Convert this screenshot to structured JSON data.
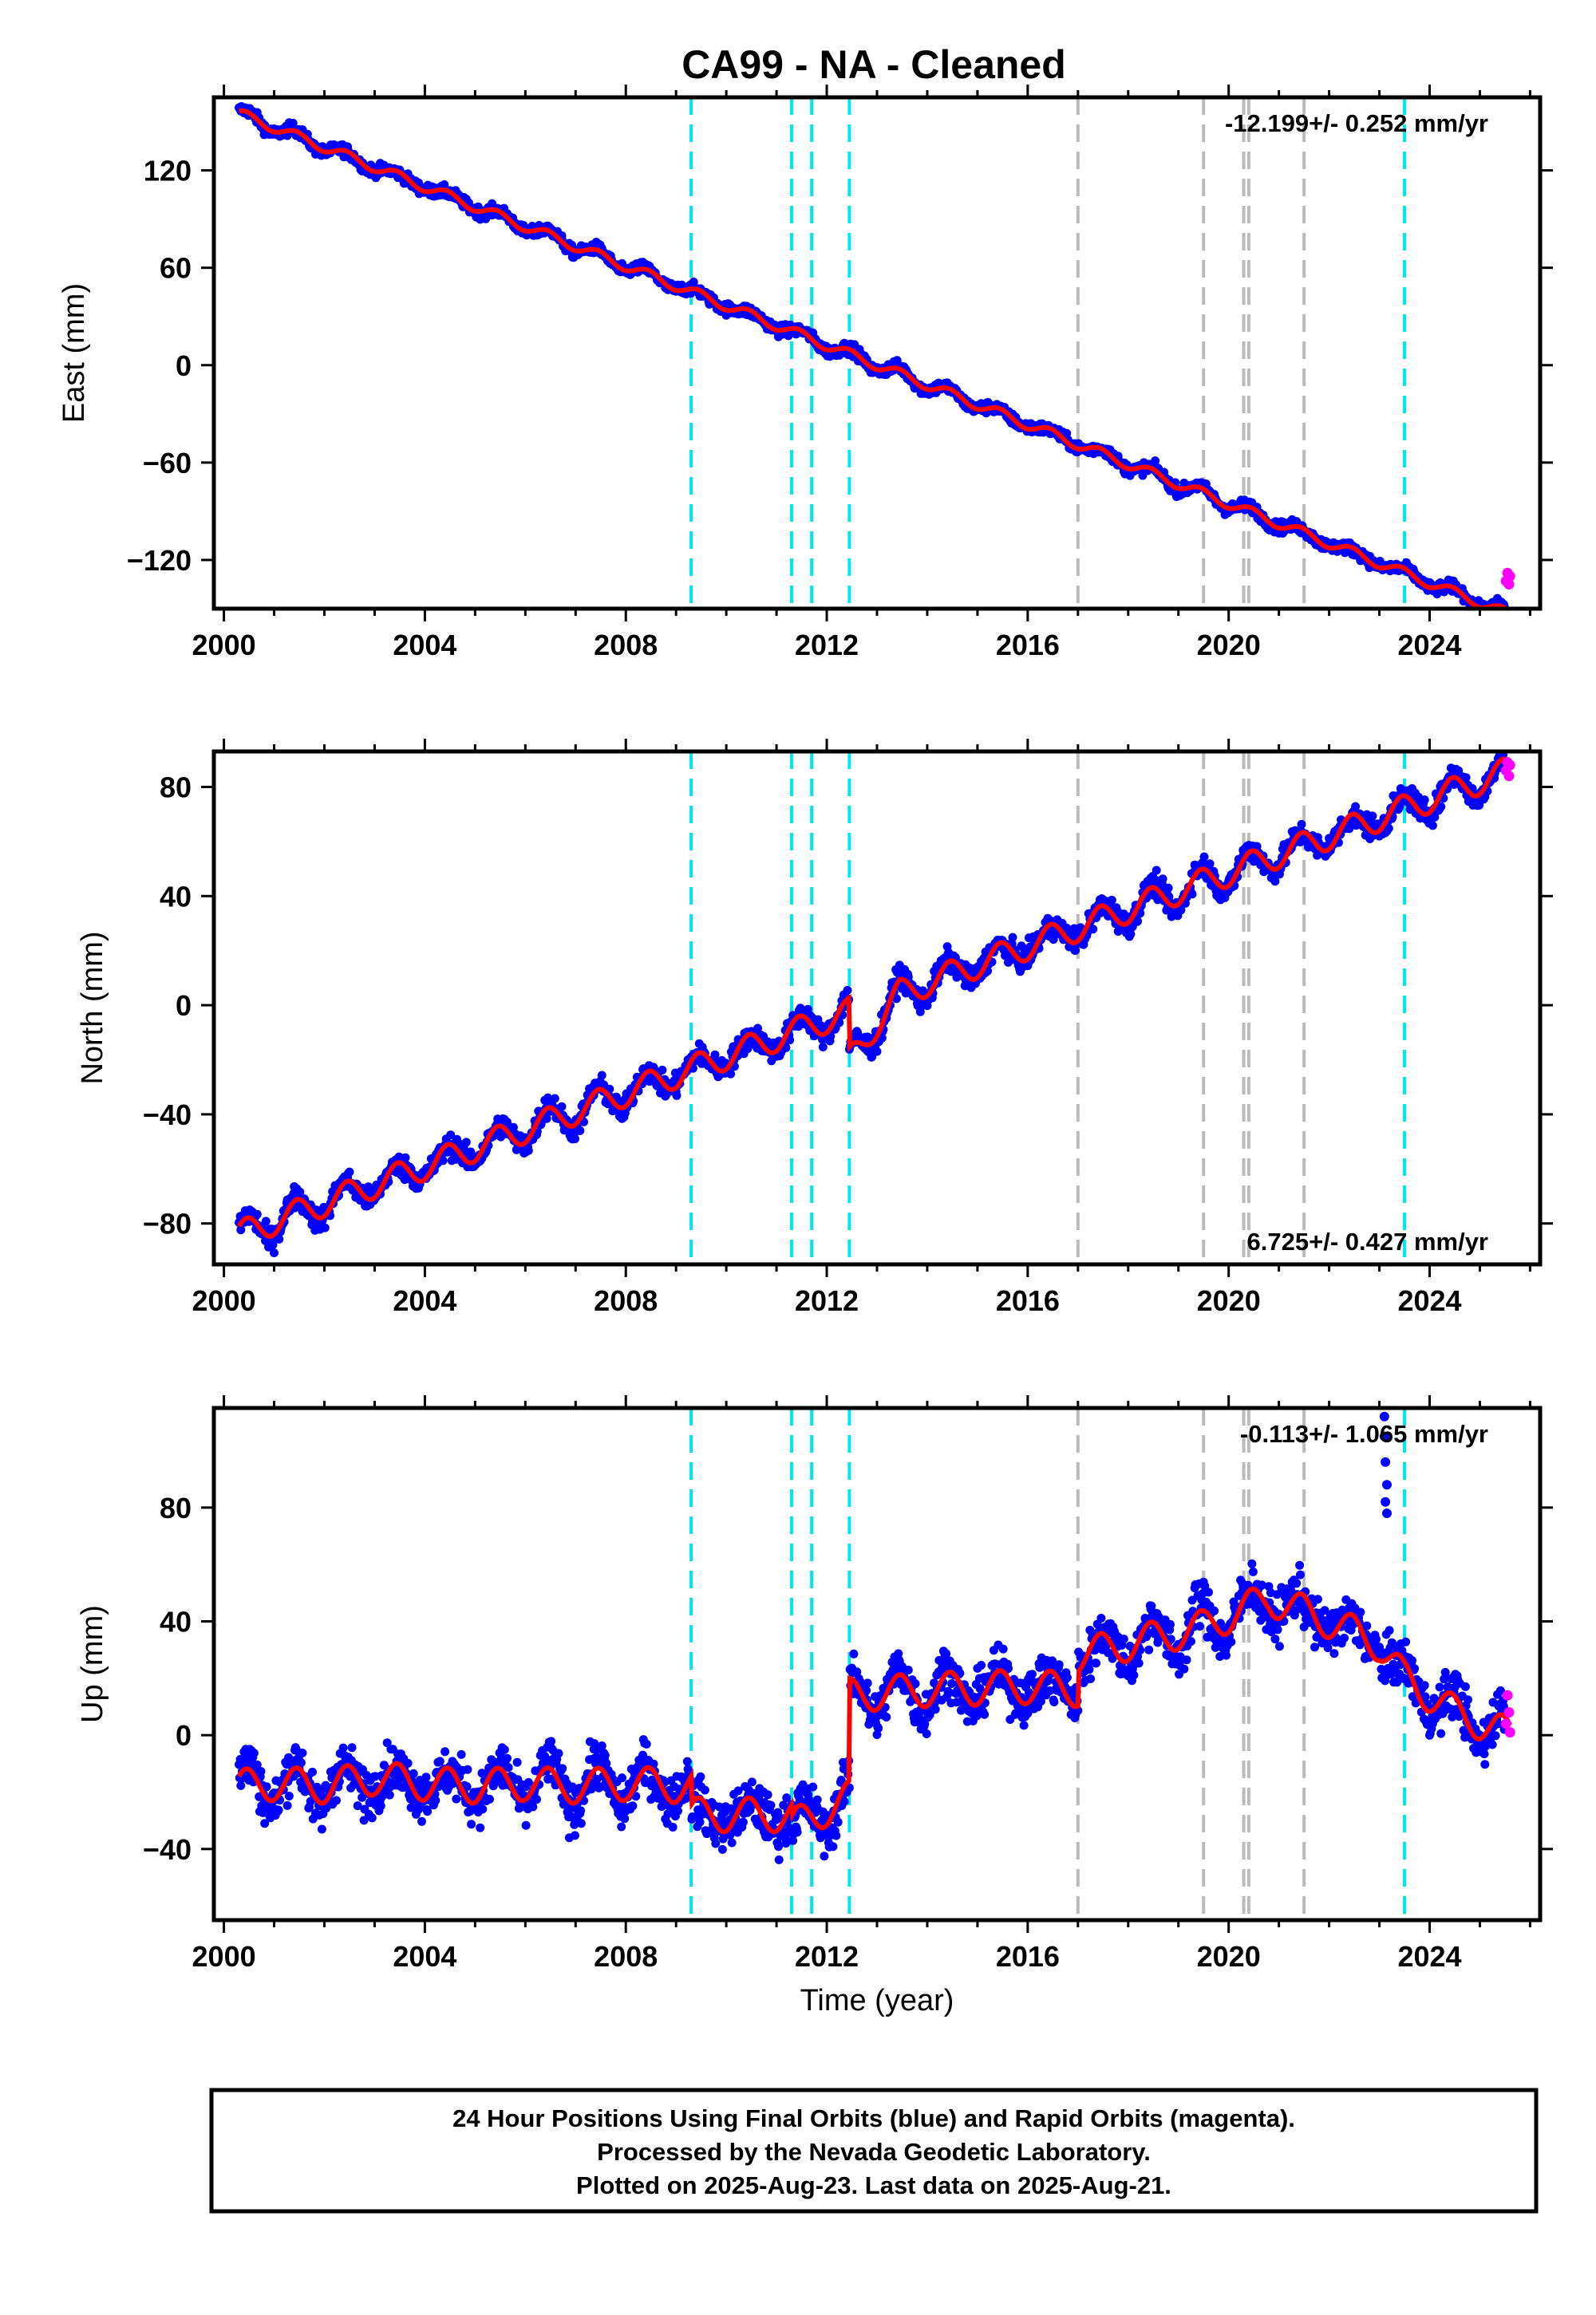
{
  "title": "CA99  - NA - Cleaned",
  "colors": {
    "final_points": "#0000ff",
    "rapid_points": "#ff00ff",
    "model_line": "#ff0000",
    "event_cyan": "#00e5ee",
    "event_gray": "#bbbbbb"
  },
  "chart_data": [
    {
      "type": "scatter",
      "panel": "east",
      "ylabel": "East (mm)",
      "xlabel": "",
      "xlim": [
        1999.8,
        2026.2
      ],
      "ylim": [
        -150,
        165
      ],
      "xticks": [
        2000,
        2004,
        2008,
        2012,
        2016,
        2020,
        2024
      ],
      "yticks": [
        -120,
        -60,
        0,
        60,
        120
      ],
      "rate_text": "-12.199+/- 0.252 mm/yr",
      "rate_position": "top-right",
      "series_params": {
        "start": 2000.3,
        "end": 2025.6,
        "v0": 155,
        "slope": -12.199,
        "amp": 3,
        "noise": 2.5,
        "steps": []
      },
      "cyan_events": [
        2009.3,
        2011.3,
        2011.7,
        2012.45,
        2023.5
      ],
      "gray_events": [
        2017.0,
        2019.5,
        2020.3,
        2020.4,
        2021.5
      ],
      "rapid_points": [
        [
          2025.52,
          -133
        ],
        [
          2025.55,
          -128
        ],
        [
          2025.58,
          -135
        ],
        [
          2025.6,
          -130
        ]
      ]
    },
    {
      "type": "scatter",
      "panel": "north",
      "ylabel": "North (mm)",
      "xlabel": "",
      "xlim": [
        1999.8,
        2026.2
      ],
      "ylim": [
        -95,
        93
      ],
      "xticks": [
        2000,
        2004,
        2008,
        2012,
        2016,
        2020,
        2024
      ],
      "yticks": [
        -80,
        -40,
        0,
        40,
        80
      ],
      "rate_text": "6.725+/- 0.427 mm/yr",
      "rate_position": "bottom-right",
      "series_params": {
        "start": 2000.3,
        "end": 2025.6,
        "v0": -84,
        "slope": 6.725,
        "amp": 5,
        "noise": 3,
        "steps": [
          [
            2012.45,
            -18
          ],
          [
            2017.0,
            0
          ]
        ]
      },
      "cyan_events": [
        2009.3,
        2011.3,
        2011.7,
        2012.45,
        2023.5
      ],
      "gray_events": [
        2017.0,
        2019.5,
        2020.3,
        2020.4,
        2021.5
      ],
      "rapid_points": [
        [
          2025.52,
          86
        ],
        [
          2025.55,
          89
        ],
        [
          2025.58,
          84
        ],
        [
          2025.6,
          88
        ]
      ]
    },
    {
      "type": "scatter",
      "panel": "up",
      "ylabel": "Up (mm)",
      "xlabel": "Time (year)",
      "xlim": [
        1999.8,
        2026.2
      ],
      "ylim": [
        -65,
        115
      ],
      "xticks": [
        2000,
        2004,
        2008,
        2012,
        2016,
        2020,
        2024
      ],
      "yticks": [
        -40,
        0,
        40,
        80
      ],
      "rate_text": "-0.113+/- 1.065 mm/yr",
      "rate_position": "top-right",
      "series_knots": [
        [
          2000.3,
          -18
        ],
        [
          2001.0,
          -17
        ],
        [
          2002.0,
          -18
        ],
        [
          2003.0,
          -15
        ],
        [
          2004.0,
          -17
        ],
        [
          2005.0,
          -18
        ],
        [
          2006.0,
          -17
        ],
        [
          2007.0,
          -18
        ],
        [
          2008.0,
          -17
        ],
        [
          2009.3,
          -18
        ],
        [
          2009.31,
          -28
        ],
        [
          2011.3,
          -28
        ],
        [
          2011.31,
          -32
        ],
        [
          2012.45,
          -22
        ],
        [
          2012.46,
          14
        ],
        [
          2014.0,
          16
        ],
        [
          2016.0,
          17
        ],
        [
          2017.0,
          16
        ],
        [
          2017.01,
          28
        ],
        [
          2019.5,
          38
        ],
        [
          2020.8,
          48
        ],
        [
          2022.0,
          40
        ],
        [
          2023.0,
          32
        ],
        [
          2023.5,
          20
        ],
        [
          2024.5,
          8
        ],
        [
          2025.6,
          0
        ]
      ],
      "series_params": {
        "start": 2000.3,
        "end": 2025.6,
        "amp": 6,
        "noise": 6
      },
      "outliers": [
        [
          2023.1,
          112
        ],
        [
          2023.1,
          105
        ],
        [
          2023.12,
          96
        ],
        [
          2023.15,
          88
        ],
        [
          2023.12,
          82
        ],
        [
          2023.15,
          78
        ]
      ],
      "cyan_events": [
        2009.3,
        2011.3,
        2011.7,
        2012.45,
        2023.5
      ],
      "gray_events": [
        2017.0,
        2019.5,
        2020.3,
        2020.4,
        2021.5
      ],
      "rapid_points": [
        [
          2025.52,
          4
        ],
        [
          2025.55,
          14
        ],
        [
          2025.58,
          8
        ],
        [
          2025.6,
          1
        ]
      ]
    }
  ],
  "footer": {
    "line1": "24 Hour Positions Using Final Orbits (blue) and Rapid Orbits (magenta).",
    "line2": "Processed by the Nevada Geodetic Laboratory.",
    "line3": "Plotted on 2025-Aug-23. Last data on 2025-Aug-21."
  }
}
